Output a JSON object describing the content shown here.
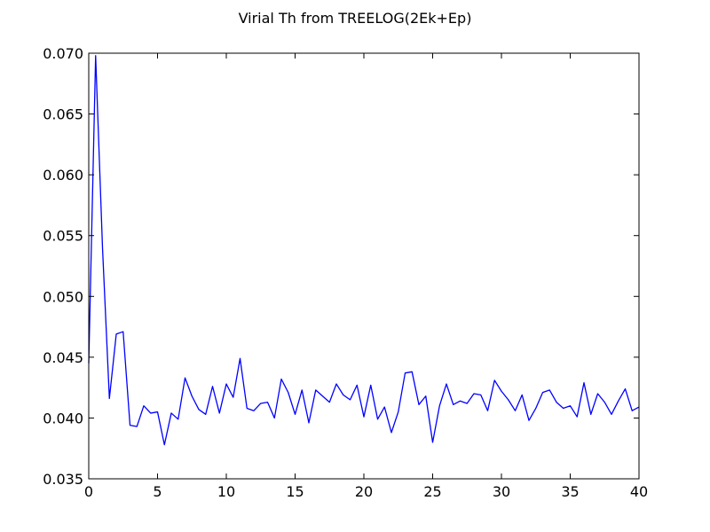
{
  "chart_data": {
    "type": "line",
    "title": "Virial Th from TREELOG(2Ek+Ep)",
    "xlabel": "",
    "ylabel": "",
    "xlim": [
      0,
      40
    ],
    "ylim": [
      0.035,
      0.07
    ],
    "xticks": [
      0,
      5,
      10,
      15,
      20,
      25,
      30,
      35,
      40
    ],
    "xtick_labels": [
      "0",
      "5",
      "10",
      "15",
      "20",
      "25",
      "30",
      "35",
      "40"
    ],
    "yticks": [
      0.035,
      0.04,
      0.045,
      0.05,
      0.055,
      0.06,
      0.065,
      0.07
    ],
    "ytick_labels": [
      "0.035",
      "0.040",
      "0.045",
      "0.050",
      "0.055",
      "0.060",
      "0.065",
      "0.070"
    ],
    "grid": false,
    "line_color": "#0000ff",
    "series": [
      {
        "x": [
          0,
          0.5,
          1,
          1.5,
          2,
          2.5,
          3,
          3.5,
          4,
          4.5,
          5,
          5.5,
          6,
          6.5,
          7,
          7.5,
          8,
          8.5,
          9,
          9.5,
          10,
          10.5,
          11,
          11.5,
          12,
          12.5,
          13,
          13.5,
          14,
          14.5,
          15,
          15.5,
          16,
          16.5,
          17,
          17.5,
          18,
          18.5,
          19,
          19.5,
          20,
          20.5,
          21,
          21.5,
          22,
          22.5,
          23,
          23.5,
          24,
          24.5,
          25,
          25.5,
          26,
          26.5,
          27,
          27.5,
          28,
          28.5,
          29,
          29.5,
          30,
          30.5,
          31,
          31.5,
          32,
          32.5,
          33,
          33.5,
          34,
          34.5,
          35,
          35.5,
          36,
          36.5,
          37,
          37.5,
          38,
          38.5,
          39,
          39.5,
          40
        ],
        "y": [
          0.0445,
          0.0698,
          0.054,
          0.0416,
          0.0469,
          0.0471,
          0.0394,
          0.0393,
          0.041,
          0.0404,
          0.0405,
          0.0378,
          0.0404,
          0.0399,
          0.0433,
          0.0418,
          0.0407,
          0.0403,
          0.0426,
          0.0404,
          0.0428,
          0.0417,
          0.0449,
          0.0408,
          0.0406,
          0.0412,
          0.0413,
          0.04,
          0.0432,
          0.0421,
          0.0403,
          0.0423,
          0.0396,
          0.0423,
          0.0418,
          0.0413,
          0.0428,
          0.0419,
          0.0415,
          0.0427,
          0.0401,
          0.0427,
          0.0399,
          0.0409,
          0.0388,
          0.0405,
          0.0437,
          0.0438,
          0.0411,
          0.0418,
          0.038,
          0.041,
          0.0428,
          0.0411,
          0.0414,
          0.0412,
          0.042,
          0.0419,
          0.0406,
          0.0431,
          0.0422,
          0.0415,
          0.0406,
          0.0419,
          0.0398,
          0.0408,
          0.0421,
          0.0423,
          0.0413,
          0.0408,
          0.041,
          0.0401,
          0.0429,
          0.0403,
          0.042,
          0.0413,
          0.0403,
          0.0414,
          0.0424,
          0.0406,
          0.0409
        ]
      }
    ]
  }
}
